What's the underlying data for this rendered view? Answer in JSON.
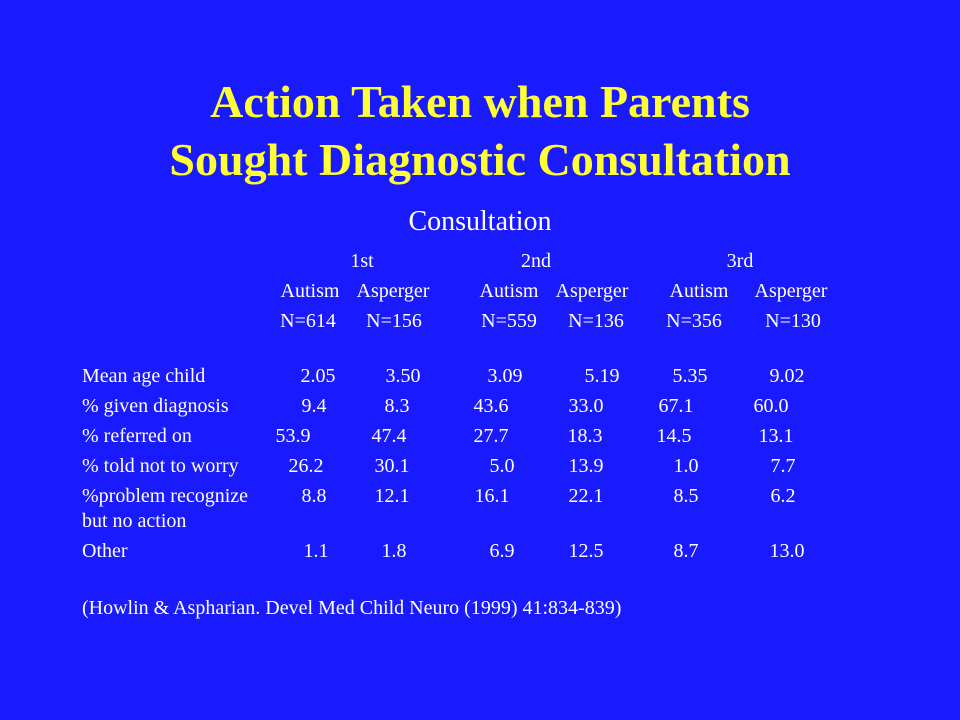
{
  "slide": {
    "title_line1": "Action Taken when Parents",
    "title_line2": "Sought Diagnostic Consultation",
    "caption": "Consultation",
    "citation": "(Howlin & Aspharian. Devel Med Child Neuro (1999) 41:834-839)",
    "colors": {
      "background": "#1a1aff",
      "title": "#ffff33",
      "text": "#ffffff"
    }
  },
  "table": {
    "consultations": [
      "1st",
      "2nd",
      "3rd"
    ],
    "groups": [
      "Autism",
      "Asperger",
      "Autism",
      "Asperger",
      "Autism",
      "Asperger"
    ],
    "sample_sizes": [
      "N=614",
      "N=156",
      "N=559",
      "N=136",
      "N=356",
      "N=130"
    ],
    "rows": [
      {
        "label": "Mean age child",
        "values": [
          "2.05",
          "3.50",
          "3.09",
          "5.19",
          "5.35",
          "9.02"
        ]
      },
      {
        "label": "% given diagnosis",
        "values": [
          "9.4",
          "8.3",
          "43.6",
          "33.0",
          "67.1",
          "60.0"
        ]
      },
      {
        "label": "% referred on",
        "values": [
          "53.9",
          "47.4",
          "27.7",
          "18.3",
          "14.5",
          "13.1"
        ]
      },
      {
        "label": "% told not to worry",
        "values": [
          "26.2",
          "30.1",
          "5.0",
          "13.9",
          "1.0",
          "7.7"
        ]
      },
      {
        "label": "%problem recognize",
        "label_line2": "but no action",
        "values": [
          "8.8",
          "12.1",
          "16.1",
          "22.1",
          "8.5",
          "6.2"
        ]
      },
      {
        "label": "Other",
        "values": [
          "1.1",
          "1.8",
          "6.9",
          "12.5",
          "8.7",
          "13.0"
        ]
      }
    ]
  }
}
